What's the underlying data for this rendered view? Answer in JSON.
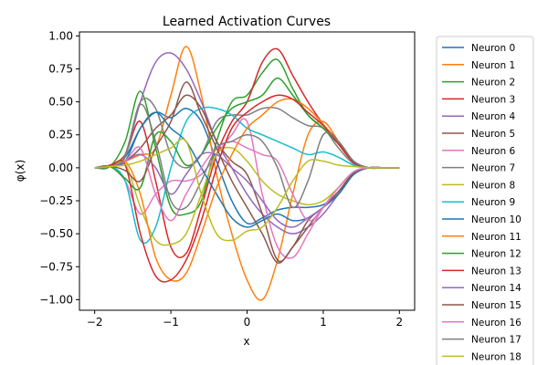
{
  "chart_data": {
    "type": "line",
    "title": "Learned Activation Curves",
    "xlabel": "x",
    "ylabel": "φ(x)",
    "xlim": [
      -2.2,
      2.2
    ],
    "ylim": [
      -1.08,
      1.03
    ],
    "xticks": [
      -2,
      -1,
      0,
      1,
      2
    ],
    "xtick_labels": [
      "−2",
      "−1",
      "0",
      "1",
      "2"
    ],
    "yticks": [
      -1.0,
      -0.75,
      -0.5,
      -0.25,
      0.0,
      0.25,
      0.5,
      0.75,
      1.0
    ],
    "ytick_labels": [
      "−1.00",
      "−0.75",
      "−0.50",
      "−0.25",
      "0.00",
      "0.25",
      "0.50",
      "0.75",
      "1.00"
    ],
    "grid": false,
    "legend_position": "outside-right",
    "x": [
      -2.0,
      -1.8,
      -1.6,
      -1.4,
      -1.2,
      -1.0,
      -0.8,
      -0.6,
      -0.4,
      -0.2,
      0.0,
      0.2,
      0.4,
      0.6,
      0.8,
      1.0,
      1.2,
      1.4,
      1.6,
      1.8,
      2.0
    ],
    "series": [
      {
        "name": "Neuron 0",
        "color": "#1f77b4",
        "values": [
          0,
          0.01,
          0.08,
          0.3,
          0.42,
          0.38,
          0.45,
          0.35,
          0.05,
          -0.25,
          -0.42,
          -0.38,
          -0.32,
          -0.3,
          -0.3,
          -0.28,
          -0.2,
          -0.05,
          0,
          0,
          0
        ]
      },
      {
        "name": "Neuron 1",
        "color": "#ff7f0e",
        "values": [
          0,
          0.01,
          0.05,
          0.1,
          0.15,
          0.55,
          0.92,
          0.55,
          -0.05,
          -0.5,
          -0.85,
          -1.0,
          -0.7,
          -0.2,
          0.25,
          0.35,
          0.2,
          0.05,
          0,
          0,
          0
        ]
      },
      {
        "name": "Neuron 2",
        "color": "#2ca02c",
        "values": [
          0,
          0.01,
          0.2,
          0.58,
          0.15,
          -0.3,
          -0.35,
          -0.25,
          0.2,
          0.5,
          0.55,
          0.72,
          0.82,
          0.6,
          0.4,
          0.3,
          0.18,
          0.05,
          0,
          0,
          0
        ]
      },
      {
        "name": "Neuron 3",
        "color": "#d62728",
        "values": [
          0,
          0.02,
          0.1,
          0.35,
          -0.1,
          -0.6,
          -0.65,
          -0.3,
          0.1,
          0.35,
          0.5,
          0.8,
          0.9,
          0.7,
          0.5,
          0.33,
          0.2,
          0.05,
          0,
          0,
          0
        ]
      },
      {
        "name": "Neuron 4",
        "color": "#9467bd",
        "values": [
          0,
          0.01,
          0.1,
          0.5,
          0.8,
          0.87,
          0.75,
          0.5,
          0.2,
          0,
          -0.2,
          -0.35,
          -0.45,
          -0.5,
          -0.45,
          -0.35,
          -0.2,
          -0.05,
          0,
          0,
          0
        ]
      },
      {
        "name": "Neuron 5",
        "color": "#8c564b",
        "values": [
          0,
          0.01,
          0.05,
          0.15,
          0.3,
          0.4,
          0.55,
          0.45,
          0.2,
          0.05,
          -0.05,
          -0.35,
          -0.7,
          -0.6,
          -0.4,
          -0.3,
          -0.2,
          -0.05,
          0,
          0,
          0
        ]
      },
      {
        "name": "Neuron 6",
        "color": "#e377c2",
        "values": [
          0,
          0.01,
          -0.1,
          -0.35,
          -0.2,
          -0.1,
          -0.1,
          -0.05,
          0.1,
          0.25,
          0.35,
          -0.2,
          -0.6,
          -0.68,
          -0.5,
          -0.3,
          -0.15,
          -0.03,
          0,
          0,
          0
        ]
      },
      {
        "name": "Neuron 7",
        "color": "#7f7f7f",
        "values": [
          0,
          0.01,
          0.1,
          0.5,
          0.45,
          0.1,
          0.0,
          0.1,
          0.35,
          0.4,
          0.4,
          0.45,
          0.45,
          0.38,
          0.32,
          0.3,
          0.15,
          0.03,
          0,
          0,
          0
        ]
      },
      {
        "name": "Neuron 8",
        "color": "#bcbd22",
        "values": [
          0,
          0.01,
          0.03,
          -0.3,
          -0.55,
          -0.58,
          -0.5,
          -0.2,
          0.1,
          0.15,
          0.05,
          -0.1,
          -0.2,
          -0.25,
          -0.28,
          -0.25,
          -0.15,
          -0.03,
          0,
          0,
          0
        ]
      },
      {
        "name": "Neuron 9",
        "color": "#17becf",
        "values": [
          0,
          0.01,
          -0.1,
          -0.55,
          -0.45,
          0.0,
          0.35,
          0.45,
          0.45,
          0.4,
          0.3,
          0.25,
          0.2,
          0.15,
          0.1,
          0.12,
          0.08,
          0.02,
          0,
          0,
          0
        ]
      },
      {
        "name": "Neuron 10",
        "color": "#1f77b4",
        "values": [
          0,
          0.01,
          0.05,
          0.3,
          0.42,
          0.3,
          0.2,
          0.0,
          -0.2,
          -0.38,
          -0.45,
          -0.4,
          -0.35,
          -0.4,
          -0.38,
          -0.3,
          -0.2,
          -0.05,
          0,
          0,
          0
        ]
      },
      {
        "name": "Neuron 11",
        "color": "#ff7f0e",
        "values": [
          0,
          0.01,
          0.05,
          -0.2,
          -0.68,
          -0.85,
          -0.8,
          -0.5,
          -0.15,
          0.1,
          0.3,
          0.4,
          0.5,
          0.52,
          0.45,
          0.33,
          0.18,
          0.04,
          0,
          0,
          0
        ]
      },
      {
        "name": "Neuron 12",
        "color": "#2ca02c",
        "values": [
          0,
          0.01,
          -0.08,
          -0.15,
          0.25,
          0.2,
          0.02,
          0.1,
          0.3,
          0.45,
          0.5,
          0.55,
          0.68,
          0.55,
          0.4,
          0.3,
          0.18,
          0.04,
          0,
          0,
          0
        ]
      },
      {
        "name": "Neuron 13",
        "color": "#d62728",
        "values": [
          0,
          0.01,
          0.02,
          -0.5,
          -0.82,
          -0.85,
          -0.7,
          -0.4,
          0.0,
          0.3,
          0.42,
          0.5,
          0.55,
          0.52,
          0.42,
          0.32,
          0.18,
          0.04,
          0,
          0,
          0
        ]
      },
      {
        "name": "Neuron 14",
        "color": "#9467bd",
        "values": [
          0,
          0.01,
          0.05,
          0.1,
          0.0,
          -0.2,
          -0.05,
          0.1,
          0.1,
          0.0,
          -0.1,
          -0.25,
          -0.4,
          -0.45,
          -0.38,
          -0.3,
          -0.18,
          -0.04,
          0,
          0,
          0
        ]
      },
      {
        "name": "Neuron 15",
        "color": "#8c564b",
        "values": [
          0,
          0.01,
          -0.02,
          -0.1,
          0.15,
          0.35,
          0.65,
          0.4,
          0.15,
          -0.1,
          -0.3,
          -0.5,
          -0.72,
          -0.6,
          -0.45,
          -0.3,
          -0.18,
          -0.04,
          0,
          0,
          0
        ]
      },
      {
        "name": "Neuron 16",
        "color": "#e377c2",
        "values": [
          0,
          0.01,
          0.05,
          0.15,
          -0.2,
          -0.4,
          -0.2,
          0.0,
          0.15,
          0.2,
          0.15,
          0.1,
          0.05,
          -0.2,
          -0.4,
          -0.3,
          -0.15,
          -0.03,
          0,
          0,
          0
        ]
      },
      {
        "name": "Neuron 17",
        "color": "#7f7f7f",
        "values": [
          0,
          0.01,
          0.08,
          0.48,
          0.2,
          -0.25,
          -0.3,
          -0.1,
          0.15,
          0.2,
          0.25,
          0.2,
          0.0,
          -0.3,
          -0.1,
          0.25,
          0.2,
          0.05,
          0,
          0,
          0
        ]
      },
      {
        "name": "Neuron 18",
        "color": "#bcbd22",
        "values": [
          0,
          0.01,
          0.02,
          0.05,
          0.1,
          0.15,
          0.2,
          -0.2,
          -0.5,
          -0.55,
          -0.48,
          -0.45,
          -0.3,
          -0.1,
          0.05,
          0.05,
          0.02,
          0.01,
          0,
          0,
          0
        ]
      }
    ]
  }
}
